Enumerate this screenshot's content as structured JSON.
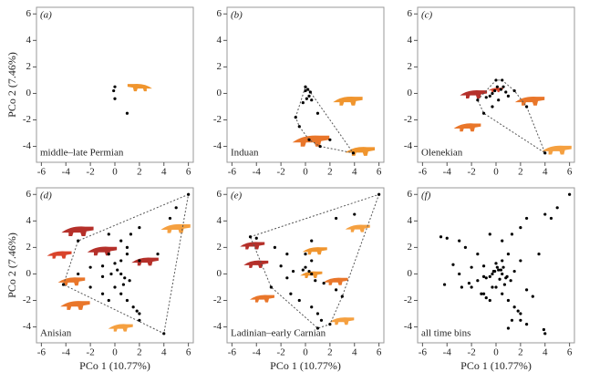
{
  "chart_data": [
    {
      "type": "scatter",
      "panel_label": "(a)",
      "period_label": "middle–late Permian",
      "ylabel": "PCo 2 (7.46%)",
      "x": [
        0,
        -0.1,
        0,
        1
      ],
      "y": [
        0.5,
        0.2,
        -0.4,
        -1.5
      ],
      "color": "#000000",
      "hull": false,
      "xlim": [
        -6.4,
        6.4
      ],
      "ylim": [
        -5.2,
        6.5
      ],
      "xticks": [
        -6,
        -4,
        -2,
        0,
        2,
        4,
        6
      ],
      "yticks": [
        -4,
        -2,
        0,
        2,
        4,
        6
      ]
    },
    {
      "type": "scatter",
      "panel_label": "(b)",
      "period_label": "Induan",
      "x": [
        0,
        0.2,
        0,
        0.4,
        0.3,
        0.1,
        -0.2,
        0.5,
        -0.8,
        1,
        2,
        1.2,
        0.3,
        -0.5,
        3.9
      ],
      "y": [
        0.5,
        0.3,
        0.2,
        0.1,
        -0.2,
        -0.4,
        -0.7,
        -0.5,
        -1.8,
        -1.5,
        -3.5,
        -4,
        -3.5,
        -2.5,
        -4.5
      ],
      "color": "#000000",
      "hull": true,
      "xlim": [
        -6.4,
        6.4
      ],
      "ylim": [
        -5.2,
        6.5
      ],
      "xticks": [
        -6,
        -4,
        -2,
        0,
        2,
        4,
        6
      ],
      "yticks": [
        -4,
        -2,
        0,
        2,
        4,
        6
      ]
    },
    {
      "type": "scatter",
      "panel_label": "(c)",
      "period_label": "Olenekian",
      "x": [
        0,
        0.1,
        0.4,
        -0.1,
        0.6,
        0.8,
        1.5,
        1,
        -0.3,
        -0.5,
        0.2,
        -0.8,
        -1.5,
        0.5,
        -0.3,
        -1,
        4,
        2.5
      ],
      "y": [
        1,
        0.5,
        0.3,
        0.2,
        0.5,
        0.1,
        0.2,
        -0.2,
        0,
        -0.2,
        -0.5,
        -0.3,
        -0.5,
        1,
        -1,
        -1.5,
        -4.5,
        -1
      ],
      "color": "#000000",
      "hull": true,
      "xlim": [
        -6.4,
        6.4
      ],
      "ylim": [
        -5.2,
        6.5
      ],
      "xticks": [
        -6,
        -4,
        -2,
        0,
        2,
        4,
        6
      ],
      "yticks": [
        -4,
        -2,
        0,
        2,
        4,
        6
      ]
    },
    {
      "type": "scatter",
      "panel_label": "(d)",
      "period_label": "Anisian",
      "ylabel": "PCo 2 (7.46%)",
      "xlabel": "PCo 1 (10.77%)",
      "x": [
        6,
        4.5,
        5,
        2,
        1.3,
        0.5,
        -0.5,
        -3,
        3.5,
        2,
        1,
        0.5,
        0,
        -1,
        -2,
        0.2,
        0.5,
        -0.3,
        0.8,
        1.2,
        -1,
        -2,
        -4.2,
        -3,
        0,
        0.5,
        1,
        1.5,
        2,
        2,
        -0.5,
        -1,
        4,
        1.8,
        0.7,
        -0.5,
        1
      ],
      "y": [
        6,
        4.2,
        5,
        3.5,
        3,
        2.5,
        3,
        2.5,
        1.5,
        1,
        1.5,
        1,
        0.8,
        0.6,
        0.5,
        0.3,
        0,
        0,
        -0.3,
        -0.5,
        -0.2,
        -1,
        -0.8,
        0,
        -1,
        -1.5,
        -2,
        -2.5,
        -3,
        -3.5,
        -2,
        -1.5,
        -4.5,
        -2.8,
        -0.8,
        1.5,
        2
      ],
      "color": "#000000",
      "hull": true,
      "xlim": [
        -6.4,
        6.4
      ],
      "ylim": [
        -5.2,
        6.5
      ],
      "xticks": [
        -6,
        -4,
        -2,
        0,
        2,
        4,
        6
      ],
      "yticks": [
        -4,
        -2,
        0,
        2,
        4,
        6
      ]
    },
    {
      "type": "scatter",
      "panel_label": "(e)",
      "period_label": "Ladinian–early Carnian",
      "xlabel": "PCo 1 (10.77%)",
      "x": [
        6,
        4,
        2.5,
        0.5,
        -4,
        -2.5,
        -1.5,
        0,
        0.5,
        0,
        -0.2,
        0.3,
        0.5,
        -1,
        -1.5,
        0.8,
        1.5,
        2.5,
        3,
        -2.8,
        -1.2,
        -0.5,
        0.5,
        1,
        1.3,
        2,
        1,
        -2,
        -4.5
      ],
      "y": [
        6,
        4.5,
        4.2,
        2.5,
        2.7,
        2,
        1.5,
        1.5,
        1,
        0.5,
        0.3,
        0.2,
        0,
        0.2,
        -0.3,
        -0.5,
        -0.7,
        -1.2,
        -1.7,
        -1,
        -1.5,
        -2,
        -2.5,
        -3,
        -3.5,
        -3.8,
        -4.1,
        0.6,
        2.8
      ],
      "color": "#000000",
      "hull": true,
      "xlim": [
        -6.4,
        6.4
      ],
      "ylim": [
        -5.2,
        6.5
      ],
      "xticks": [
        -6,
        -4,
        -2,
        0,
        2,
        4,
        6
      ],
      "yticks": [
        -4,
        -2,
        0,
        2,
        4,
        6
      ]
    },
    {
      "type": "scatter",
      "panel_label": "(f)",
      "period_label": "all time bins",
      "xlabel": "PCo 1 (10.77%)",
      "x": [
        6,
        4.5,
        5,
        4,
        2.5,
        2,
        1.3,
        0.5,
        -0.5,
        -3,
        3.5,
        2,
        1,
        0.5,
        0,
        -1,
        -2,
        0.2,
        0.5,
        -0.3,
        0.8,
        1.2,
        -1,
        -2,
        -4.2,
        -3,
        0,
        0.5,
        1,
        1.5,
        2,
        2,
        -0.5,
        -1,
        4,
        1.8,
        0.7,
        -4,
        -4.5,
        -2.5,
        -1.5,
        0.1,
        0.4,
        -0.1,
        0.6,
        1.5,
        -0.5,
        -0.8,
        -1.5,
        -0.3,
        3,
        2.5,
        -2.8,
        -1.2,
        1.3,
        1,
        -0.2,
        0.3,
        3.9,
        -0.8,
        2.5,
        -3.5,
        -2.2,
        0.9
      ],
      "y": [
        6,
        4.2,
        5,
        4.5,
        4.2,
        3.5,
        3,
        2.5,
        3,
        2.5,
        1.5,
        1,
        1.5,
        1,
        0.8,
        0.6,
        0.5,
        0.3,
        0,
        0,
        -0.3,
        -0.5,
        -0.2,
        -1,
        -0.8,
        0,
        -1,
        -1.5,
        -2,
        -2.5,
        -3,
        -3.5,
        -2,
        -1.5,
        -4.5,
        -2.8,
        -0.8,
        2.7,
        2.8,
        2,
        1.5,
        0.5,
        0.3,
        0.2,
        0.5,
        0.2,
        -0.2,
        -0.3,
        -0.5,
        -1,
        -1.7,
        -1.2,
        -1,
        -1.5,
        -3.5,
        -4.1,
        0.2,
        -0.4,
        -4.2,
        -1.8,
        -3.8,
        0.7,
        -0.7,
        -0.2
      ],
      "color": "#000000",
      "hull": false,
      "xlim": [
        -6.4,
        6.4
      ],
      "ylim": [
        -5.2,
        6.5
      ],
      "xticks": [
        -6,
        -4,
        -2,
        0,
        2,
        4,
        6
      ],
      "yticks": [
        -4,
        -2,
        0,
        2,
        4,
        6
      ]
    }
  ]
}
